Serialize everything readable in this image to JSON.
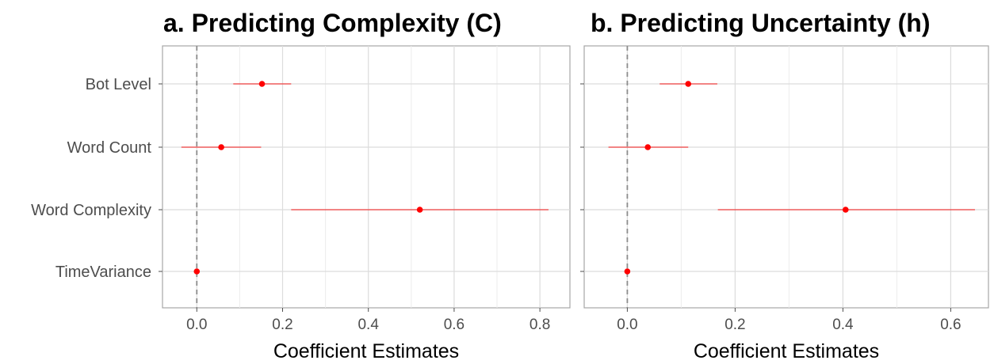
{
  "chart_data": [
    {
      "type": "scatter",
      "title": "a.  Predicting Complexity (C)",
      "xlabel": "Coefficient Estimates",
      "ylabel": "",
      "categories": [
        "Bot Level",
        "Word Count",
        "Word Complexity",
        "TimeVariance"
      ],
      "series": [
        {
          "estimates": [
            0.152,
            0.057,
            0.52,
            0.0
          ],
          "ci_lower": [
            0.085,
            -0.036,
            0.22,
            -0.002
          ],
          "ci_upper": [
            0.22,
            0.15,
            0.82,
            0.002
          ]
        }
      ],
      "xlim": [
        -0.08,
        0.87
      ],
      "xticks": [
        0.0,
        0.2,
        0.4,
        0.6,
        0.8
      ],
      "xtick_labels": [
        "0.0",
        "0.2",
        "0.4",
        "0.6",
        "0.8"
      ],
      "reference_line": 0,
      "grid": true,
      "legend": "none"
    },
    {
      "type": "scatter",
      "title": "b.  Predicting Uncertainty (h)",
      "xlabel": "Coefficient Estimates",
      "ylabel": "",
      "categories": [
        "Bot Level",
        "Word Count",
        "Word Complexity",
        "TimeVariance"
      ],
      "series": [
        {
          "estimates": [
            0.113,
            0.038,
            0.405,
            0.0
          ],
          "ci_lower": [
            0.06,
            -0.035,
            0.168,
            -0.002
          ],
          "ci_upper": [
            0.167,
            0.113,
            0.645,
            0.002
          ]
        }
      ],
      "xlim": [
        -0.08,
        0.67
      ],
      "xticks": [
        0.0,
        0.2,
        0.4,
        0.6
      ],
      "xtick_labels": [
        "0.0",
        "0.2",
        "0.4",
        "0.6"
      ],
      "reference_line": 0,
      "grid": true,
      "legend": "none"
    }
  ],
  "colors": {
    "point": "#ff0000",
    "interval": "#f04040",
    "reference_line": "#8c8c8c",
    "grid": "#dcdcdc",
    "panel_border": "#a6a6a6"
  }
}
